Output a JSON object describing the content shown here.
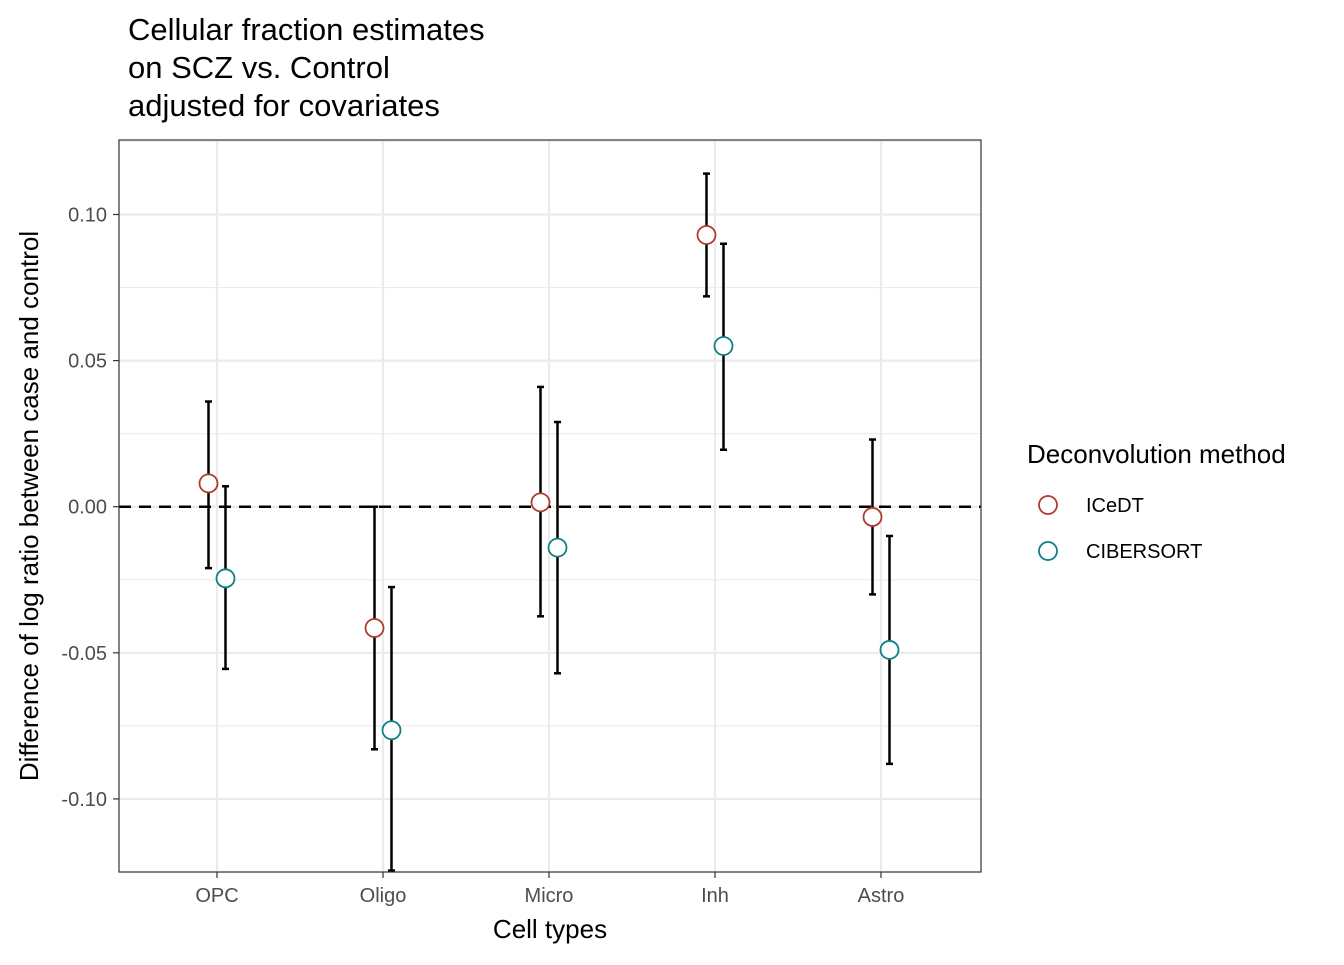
{
  "chart_data": {
    "type": "scatter",
    "title_lines": [
      "Cellular fraction estimates",
      "on SCZ vs. Control",
      "adjusted for covariates"
    ],
    "xlabel": "Cell types",
    "ylabel": "Difference of log ratio between case and control",
    "categories": [
      "OPC",
      "Oligo",
      "Micro",
      "Inh",
      "Astro"
    ],
    "ylim": [
      -0.125,
      0.1255
    ],
    "yticks": [
      0.1,
      0.05,
      0.0,
      -0.05,
      -0.1
    ],
    "ytick_labels": [
      "0.10",
      "0.05",
      "0.00",
      "-0.05",
      "-0.10"
    ],
    "reference_line": {
      "y": 0,
      "style": "dashed",
      "color": "#000000"
    },
    "grid": true,
    "legend": {
      "title": "Deconvolution method",
      "position": "right"
    },
    "series": [
      {
        "name": "ICeDT",
        "color": "#B03A2E",
        "values": [
          0.008,
          -0.0415,
          0.0015,
          0.093,
          -0.0035
        ],
        "lower": [
          -0.021,
          -0.083,
          -0.0375,
          0.072,
          -0.03
        ],
        "upper": [
          0.036,
          0.0,
          0.041,
          0.114,
          0.023
        ]
      },
      {
        "name": "CIBERSORT",
        "color": "#127F80",
        "values": [
          -0.0245,
          -0.0765,
          -0.014,
          0.055,
          -0.049
        ],
        "lower": [
          -0.0555,
          -0.1245,
          -0.057,
          0.0195,
          -0.088
        ],
        "upper": [
          0.007,
          -0.0275,
          0.029,
          0.09,
          -0.01
        ]
      }
    ]
  }
}
